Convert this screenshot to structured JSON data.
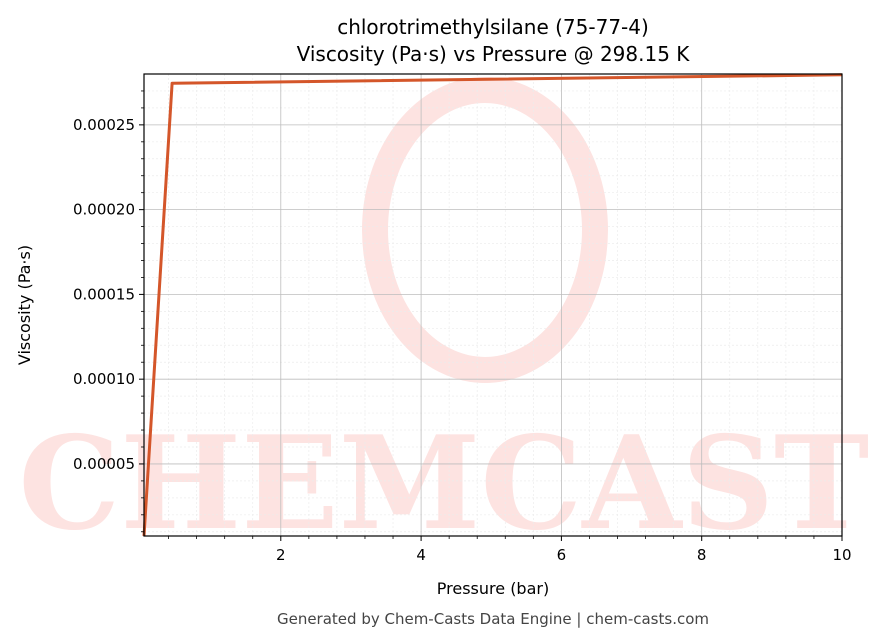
{
  "chart_data": {
    "type": "line",
    "title": "chlorotrimethylsilane (75-77-4)",
    "subtitle": "Viscosity (Pa·s) vs Pressure @ 298.15 K",
    "xlabel": "Pressure (bar)",
    "ylabel": "Viscosity (Pa·s)",
    "xlim": [
      0.05,
      10
    ],
    "ylim": [
      7.5e-06,
      0.00028
    ],
    "x_ticks": [
      2,
      4,
      6,
      8,
      10
    ],
    "x_tick_labels": [
      "2",
      "4",
      "6",
      "8",
      "10"
    ],
    "y_ticks": [
      5e-05,
      0.0001,
      0.00015,
      0.0002,
      0.00025
    ],
    "y_tick_labels": [
      "0.00005",
      "0.00010",
      "0.00015",
      "0.00020",
      "0.00025"
    ],
    "grid": true,
    "series": [
      {
        "color": "#d4562a",
        "x": [
          0.05,
          0.45,
          10
        ],
        "y": [
          7.5e-06,
          0.0002745,
          0.0002795
        ]
      }
    ]
  },
  "watermark": {
    "text": "CHEMCASTS",
    "color": "#fde3e1"
  },
  "footer": "Generated by Chem-Casts Data Engine | chem-casts.com"
}
